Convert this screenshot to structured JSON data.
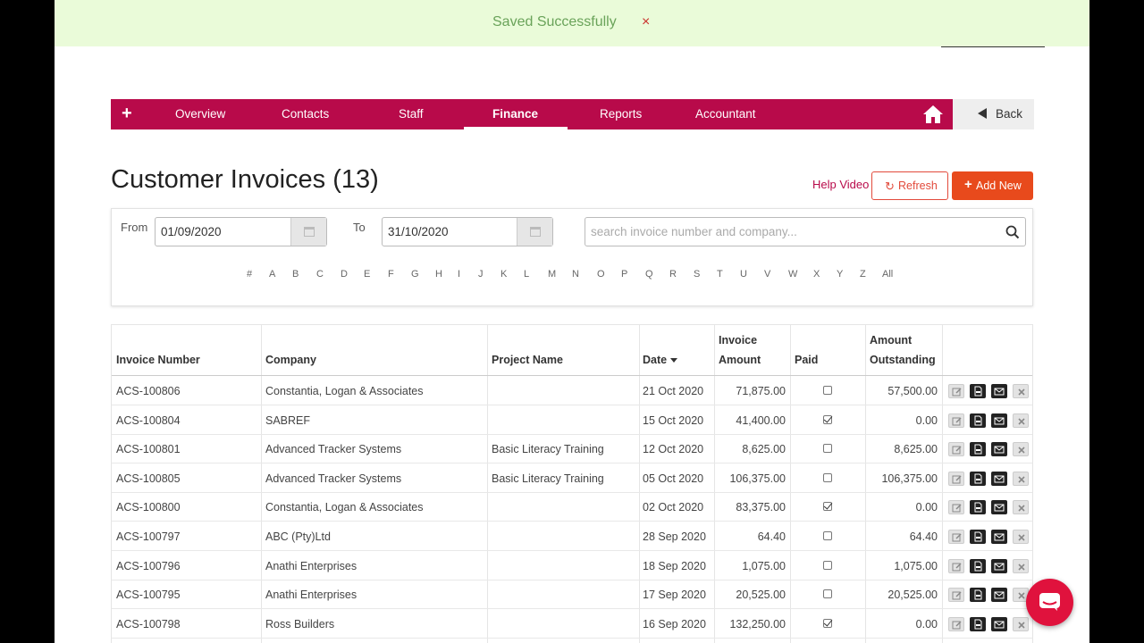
{
  "toast": {
    "message": "Saved Successfully",
    "close": "×"
  },
  "nav": {
    "plus": "+",
    "items": [
      {
        "label": "Overview"
      },
      {
        "label": "Contacts"
      },
      {
        "label": "Staff"
      },
      {
        "label": "Finance",
        "active": true
      },
      {
        "label": "Reports"
      },
      {
        "label": "Accountant"
      }
    ],
    "home_icon": "home-icon",
    "back_label": "Back"
  },
  "page": {
    "title": "Customer Invoices (13)",
    "help_video": "Help Video",
    "refresh_label": "Refresh",
    "add_new_label": "Add New"
  },
  "filters": {
    "from_label": "From",
    "from_value": "01/09/2020",
    "to_label": "To",
    "to_value": "31/10/2020",
    "search_placeholder": "search invoice number and company...",
    "alphabet": [
      "#",
      "A",
      "B",
      "C",
      "D",
      "E",
      "F",
      "G",
      "H",
      "I",
      "J",
      "K",
      "L",
      "M",
      "N",
      "O",
      "P",
      "Q",
      "R",
      "S",
      "T",
      "U",
      "V",
      "W",
      "X",
      "Y",
      "Z",
      "All"
    ]
  },
  "table": {
    "headers": {
      "invoice_number": "Invoice Number",
      "company": "Company",
      "project_name": "Project Name",
      "date": "Date",
      "invoice_amount_1": "Invoice",
      "invoice_amount_2": "Amount",
      "paid": "Paid",
      "outstanding_1": "Amount",
      "outstanding_2": "Outstanding"
    },
    "rows": [
      {
        "invoice": "ACS-100806",
        "company": "Constantia, Logan & Associates",
        "project": "",
        "date": "21 Oct 2020",
        "amount": "71,875.00",
        "paid": false,
        "outstanding": "57,500.00"
      },
      {
        "invoice": "ACS-100804",
        "company": "SABREF",
        "project": "",
        "date": "15 Oct 2020",
        "amount": "41,400.00",
        "paid": true,
        "outstanding": "0.00"
      },
      {
        "invoice": "ACS-100801",
        "company": "Advanced Tracker Systems",
        "project": "Basic Literacy Training",
        "date": "12 Oct 2020",
        "amount": "8,625.00",
        "paid": false,
        "outstanding": "8,625.00"
      },
      {
        "invoice": "ACS-100805",
        "company": "Advanced Tracker Systems",
        "project": "Basic Literacy Training",
        "date": "05 Oct 2020",
        "amount": "106,375.00",
        "paid": false,
        "outstanding": "106,375.00"
      },
      {
        "invoice": "ACS-100800",
        "company": "Constantia, Logan & Associates",
        "project": "",
        "date": "02 Oct 2020",
        "amount": "83,375.00",
        "paid": true,
        "outstanding": "0.00"
      },
      {
        "invoice": "ACS-100797",
        "company": "ABC (Pty)Ltd",
        "project": "",
        "date": "28 Sep 2020",
        "amount": "64.40",
        "paid": false,
        "outstanding": "64.40"
      },
      {
        "invoice": "ACS-100796",
        "company": "Anathi Enterprises",
        "project": "",
        "date": "18 Sep 2020",
        "amount": "1,075.00",
        "paid": false,
        "outstanding": "1,075.00"
      },
      {
        "invoice": "ACS-100795",
        "company": "Anathi Enterprises",
        "project": "",
        "date": "17 Sep 2020",
        "amount": "20,525.00",
        "paid": false,
        "outstanding": "20,525.00"
      },
      {
        "invoice": "ACS-100798",
        "company": "Ross Builders",
        "project": "",
        "date": "16 Sep 2020",
        "amount": "132,250.00",
        "paid": true,
        "outstanding": "0.00"
      }
    ],
    "row_actions": [
      "edit-icon",
      "pdf-icon",
      "mail-icon",
      "delete-icon"
    ]
  },
  "chat": {
    "icon": "chat-icon"
  },
  "colors": {
    "brand": "#b80a4a",
    "toast_bg": "#eafbd9",
    "accent": "#e84a1c"
  }
}
